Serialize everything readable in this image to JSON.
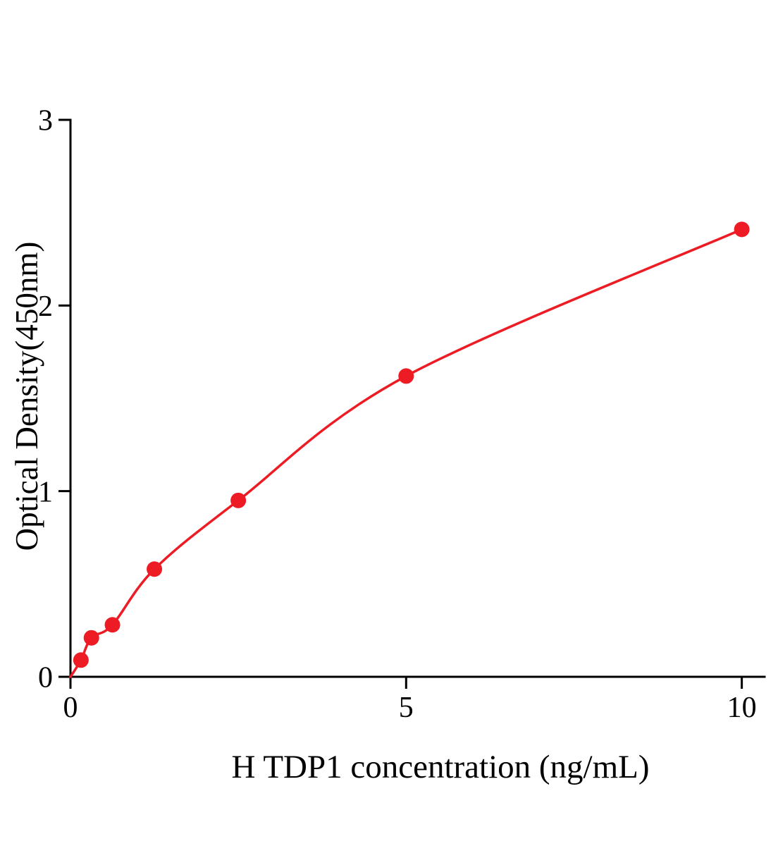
{
  "chart_data": {
    "type": "scatter",
    "title": "",
    "xlabel": "H TDP1 concentration (ng/mL)",
    "ylabel": "Optical Density(450nm)",
    "x": [
      0.156,
      0.312,
      0.625,
      1.25,
      2.5,
      5,
      10
    ],
    "y": [
      0.09,
      0.21,
      0.28,
      0.58,
      0.95,
      1.62,
      2.41
    ],
    "curve_anchor": [
      0,
      0
    ],
    "xlim": [
      0,
      10.34
    ],
    "ylim": [
      0,
      3
    ],
    "x_ticks": [
      0,
      5,
      10
    ],
    "y_ticks": [
      0,
      1,
      2,
      3
    ],
    "marker_color": "#ed1c24",
    "line_color": "#ed1c24",
    "axis_color": "#000000",
    "grid": false,
    "legend": null
  }
}
